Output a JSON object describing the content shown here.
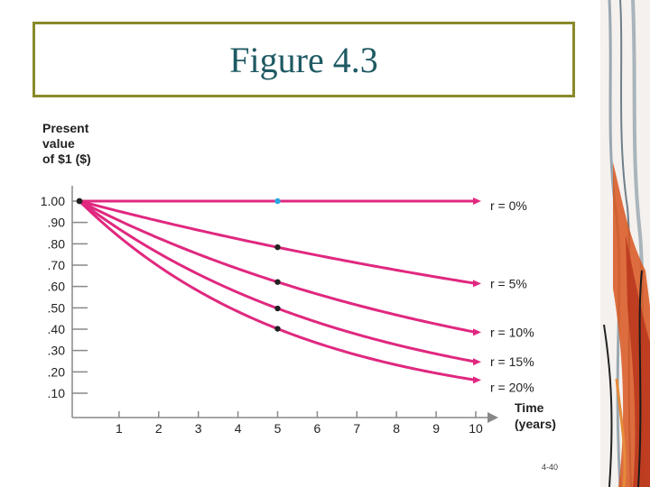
{
  "slide": {
    "title": "Figure 4.3",
    "slide_number": "4-40"
  },
  "colors": {
    "accent_line": "#e0287f",
    "marker_dark": "#222222",
    "marker_highlight": "#29a8e0",
    "title_border": "#8a8a2a",
    "title_text": "#1f5a63"
  },
  "chart_data": {
    "type": "line",
    "ylabel_lines": [
      "Present",
      "value",
      "of $1 ($)"
    ],
    "xlabel_lines": [
      "Time",
      "(years)"
    ],
    "x": [
      0,
      1,
      2,
      3,
      4,
      5,
      6,
      7,
      8,
      9,
      10
    ],
    "x_ticks": [
      "1",
      "2",
      "3",
      "4",
      "5",
      "6",
      "7",
      "8",
      "9",
      "10"
    ],
    "y_ticks": [
      "1.00",
      ".90",
      ".80",
      ".70",
      ".60",
      ".50",
      ".40",
      ".30",
      ".20",
      ".10"
    ],
    "y_tick_values": [
      1.0,
      0.9,
      0.8,
      0.7,
      0.6,
      0.5,
      0.4,
      0.3,
      0.2,
      0.1
    ],
    "xlim": [
      0,
      10
    ],
    "ylim": [
      0.05,
      1.0
    ],
    "grid": false,
    "series": [
      {
        "name": "r = 0%",
        "rate": 0.0,
        "values": [
          1.0,
          1.0,
          1.0,
          1.0,
          1.0,
          1.0,
          1.0,
          1.0,
          1.0,
          1.0,
          1.0
        ],
        "marker_year": 5,
        "marker_value": 1.0
      },
      {
        "name": "r = 5%",
        "rate": 0.05,
        "values": [
          1.0,
          0.952,
          0.907,
          0.864,
          0.823,
          0.784,
          0.746,
          0.711,
          0.677,
          0.645,
          0.614
        ],
        "marker_year": 5,
        "marker_value": 0.784
      },
      {
        "name": "r = 10%",
        "rate": 0.1,
        "values": [
          1.0,
          0.909,
          0.826,
          0.751,
          0.683,
          0.621,
          0.564,
          0.513,
          0.467,
          0.424,
          0.386
        ],
        "marker_year": 5,
        "marker_value": 0.621
      },
      {
        "name": "r = 15%",
        "rate": 0.15,
        "values": [
          1.0,
          0.87,
          0.756,
          0.658,
          0.572,
          0.497,
          0.432,
          0.376,
          0.327,
          0.284,
          0.247
        ],
        "marker_year": 5,
        "marker_value": 0.497
      },
      {
        "name": "r = 20%",
        "rate": 0.2,
        "values": [
          1.0,
          0.833,
          0.694,
          0.579,
          0.482,
          0.402,
          0.335,
          0.279,
          0.233,
          0.194,
          0.162
        ],
        "marker_year": 5,
        "marker_value": 0.402
      }
    ]
  }
}
